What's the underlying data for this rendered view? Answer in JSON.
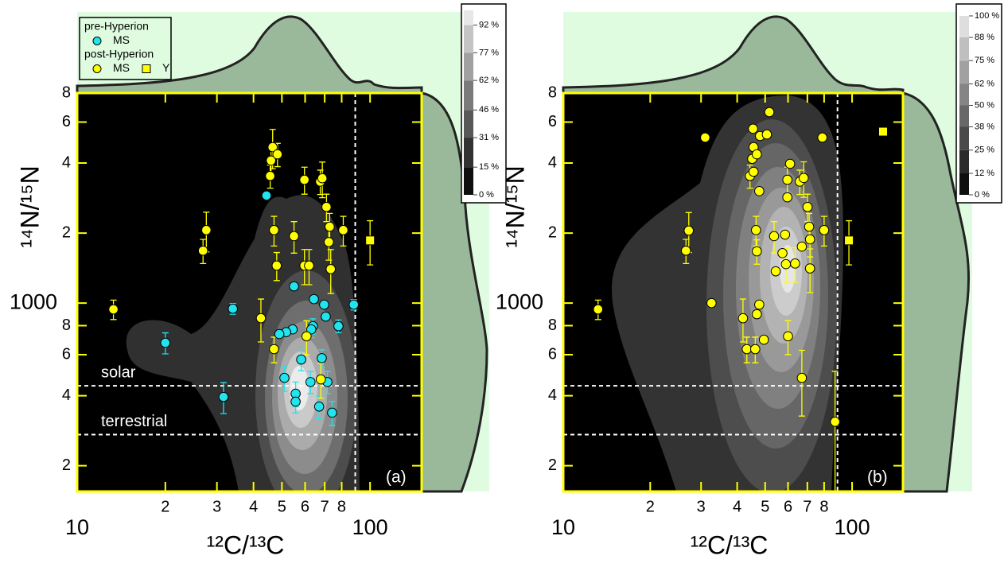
{
  "chart_data": [
    {
      "type": "scatter",
      "panel_label": "(a)",
      "xlabel": "¹²C/¹³C",
      "ylabel": "¹⁴N/¹⁵N",
      "xscale": "log",
      "yscale": "log",
      "xlim": [
        10,
        150
      ],
      "ylim": [
        155,
        8000
      ],
      "xticks": [
        10,
        {
          "value": 20,
          "label": "2"
        },
        {
          "value": 30,
          "label": "3"
        },
        {
          "value": 40,
          "label": "4"
        },
        {
          "value": 50,
          "label": "5"
        },
        {
          "value": 60,
          "label": "6"
        },
        {
          "value": 70,
          "label": "7"
        },
        {
          "value": 80,
          "label": "8"
        },
        100
      ],
      "yticks": [
        {
          "value": 200,
          "label": "2"
        },
        {
          "value": 400,
          "label": "4"
        },
        {
          "value": 600,
          "label": "6"
        },
        {
          "value": 800,
          "label": "8"
        },
        1000,
        {
          "value": 2000,
          "label": "2"
        },
        {
          "value": 4000,
          "label": "4"
        },
        {
          "value": 6000,
          "label": "6"
        },
        {
          "value": 8000,
          "label": "8"
        }
      ],
      "hlines": [
        {
          "value": 441,
          "label": "solar"
        },
        {
          "value": 272,
          "label": "terrestrial"
        }
      ],
      "vlines": [
        {
          "value": 89
        }
      ],
      "colorbar": {
        "ticks": [
          {
            "value": 0,
            "label": "0 %"
          },
          {
            "value": 15,
            "label": "15 %"
          },
          {
            "value": 31,
            "label": "31 %"
          },
          {
            "value": 46,
            "label": "46 %"
          },
          {
            "value": 62,
            "label": "62 %"
          },
          {
            "value": 77,
            "label": "77 %"
          },
          {
            "value": 92,
            "label": "92 %"
          }
        ]
      },
      "series_groups": [
        {
          "title": "pre-Hyperion",
          "series": [
            {
              "name": "MS",
              "marker": "circle",
              "color": "#22e4ee",
              "x": [
                20,
                34,
                31.6,
                44.3,
                55,
                64.3,
                69.7,
                70.6,
                88,
                78,
                63.8,
                63,
                54.4,
                51.7,
                49,
                58.2,
                68.4,
                62.6,
                51,
                55.7,
                55.7,
                67,
                74.2,
                71.5
              ],
              "y": [
                675,
                946,
                395,
                2900,
                1180,
                1040,
                985,
                875,
                985,
                796,
                796,
                771,
                771,
                750,
                736,
                572,
                580,
                458,
                477,
                408,
                377,
                359,
                338,
                458
              ],
              "yerr": [
                70,
                50,
                60,
                null,
                null,
                null,
                null,
                null,
                50,
                50,
                60,
                60,
                null,
                null,
                null,
                60,
                50,
                50,
                60,
                50,
                40,
                40,
                40,
                50
              ]
            }
          ]
        },
        {
          "title": "post-Hyperion",
          "series": [
            {
              "name": "MS",
              "marker": "circle",
              "color": "#ffff00",
              "x": [
                13.3,
                26.9,
                27.6,
                42.4,
                47,
                45.6,
                45.9,
                46.5,
                48.3,
                47,
                48,
                55,
                59.7,
                59.7,
                61.9,
                60.7,
                67.6,
                68.7,
                71,
                72.8,
                72.3,
                73.4,
                81,
                67.9
              ],
              "y": [
                940,
                1680,
                2060,
                861,
                634,
                3520,
                4100,
                4680,
                4360,
                2060,
                1450,
                1940,
                3390,
                1450,
                1450,
                720,
                3330,
                3440,
                2590,
                2130,
                1830,
                1400,
                2060,
                470
              ],
              "yerr": [
                90,
                200,
                400,
                180,
                80,
                400,
                500,
                900,
                500,
                300,
                200,
                300,
                450,
                250,
                250,
                120,
                400,
                600,
                350,
                300,
                300,
                300,
                300,
                80
              ]
            },
            {
              "name": "Y",
              "marker": "square",
              "color": "#ffff00",
              "x": [
                100
              ],
              "y": [
                1860
              ],
              "yerr": [
                400
              ]
            }
          ]
        }
      ]
    },
    {
      "type": "scatter",
      "panel_label": "(b)",
      "xlabel": "¹²C/¹³C",
      "ylabel": "¹⁴N/¹⁵N",
      "xscale": "log",
      "yscale": "log",
      "xlim": [
        10,
        150
      ],
      "ylim": [
        155,
        8000
      ],
      "xticks": [
        10,
        {
          "value": 20,
          "label": "2"
        },
        {
          "value": 30,
          "label": "3"
        },
        {
          "value": 40,
          "label": "4"
        },
        {
          "value": 50,
          "label": "5"
        },
        {
          "value": 60,
          "label": "6"
        },
        {
          "value": 70,
          "label": "7"
        },
        {
          "value": 80,
          "label": "8"
        },
        100
      ],
      "yticks": [
        {
          "value": 200,
          "label": "2"
        },
        {
          "value": 400,
          "label": "4"
        },
        {
          "value": 600,
          "label": "6"
        },
        {
          "value": 800,
          "label": "8"
        },
        1000,
        {
          "value": 2000,
          "label": "2"
        },
        {
          "value": 4000,
          "label": "4"
        },
        {
          "value": 6000,
          "label": "6"
        },
        {
          "value": 8000,
          "label": "8"
        }
      ],
      "hlines": [
        {
          "value": 441
        },
        {
          "value": 272
        }
      ],
      "vlines": [
        {
          "value": 89
        }
      ],
      "colorbar": {
        "ticks": [
          {
            "value": 0,
            "label": "0 %"
          },
          {
            "value": 12,
            "label": "12 %"
          },
          {
            "value": 25,
            "label": "25 %"
          },
          {
            "value": 38,
            "label": "38 %"
          },
          {
            "value": 50,
            "label": "50 %"
          },
          {
            "value": 62,
            "label": "62 %"
          },
          {
            "value": 75,
            "label": "75 %"
          },
          {
            "value": 88,
            "label": "88 %"
          },
          {
            "value": 100,
            "label": "100 %"
          }
        ]
      },
      "series": [
        {
          "marker": "circle",
          "color": "#ffff00",
          "x": [
            13.2,
            26.6,
            27.2,
            31,
            32.6,
            41.9,
            43.2,
            46.2,
            49.5,
            45.4,
            45.6,
            45.1,
            46.8,
            48,
            50.7,
            51.7,
            44.3,
            45.6,
            47.7,
            46.5,
            46.8,
            53.7,
            59.7,
            54.4,
            57.4,
            59,
            58.6,
            59.7,
            61,
            63.5,
            67,
            71.5,
            65.9,
            68,
            70.1,
            71,
            71.5,
            80,
            78.9,
            47.7,
            46.8,
            60,
            67,
            87.3
          ],
          "y": [
            940,
            1680,
            2050,
            5150,
            1000,
            861,
            634,
            634,
            696,
            5620,
            4680,
            4170,
            4360,
            5230,
            5310,
            6620,
            3520,
            3670,
            3030,
            2060,
            1670,
            1940,
            3390,
            1370,
            1640,
            1470,
            1970,
            2850,
            3970,
            1480,
            1750,
            1880,
            3330,
            3450,
            2590,
            2130,
            1410,
            2060,
            5150,
            985,
            896,
            720,
            477,
            309
          ],
          "yerr": [
            90,
            200,
            400,
            null,
            null,
            180,
            80,
            80,
            null,
            null,
            null,
            null,
            null,
            null,
            null,
            null,
            400,
            null,
            null,
            300,
            200,
            300,
            450,
            null,
            null,
            250,
            null,
            null,
            null,
            250,
            null,
            300,
            400,
            600,
            350,
            300,
            300,
            300,
            null,
            null,
            null,
            120,
            150,
            200
          ]
        },
        {
          "marker": "square",
          "color": "#ffff00",
          "x": [
            97.5,
            128
          ],
          "y": [
            1860,
            5460
          ],
          "yerr": [
            400,
            null
          ]
        }
      ]
    }
  ]
}
